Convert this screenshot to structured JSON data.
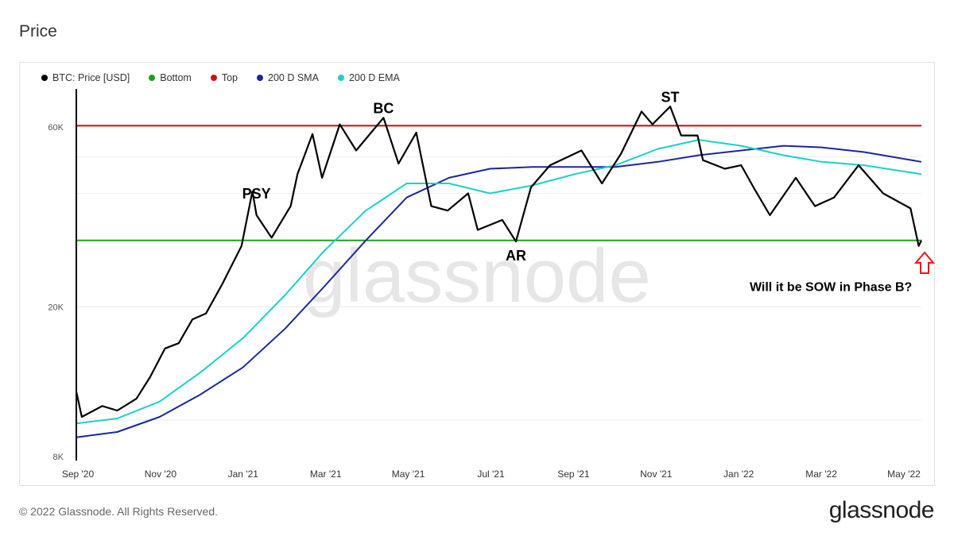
{
  "page": {
    "title": "Price",
    "copyright": "© 2022 Glassnode. All Rights Reserved.",
    "brand": "glassnode",
    "watermark": "glassnode"
  },
  "legend": [
    {
      "label": "BTC: Price [USD]",
      "color": "#000000"
    },
    {
      "label": "Bottom",
      "color": "#1aa31a"
    },
    {
      "label": "Top",
      "color": "#c41414"
    },
    {
      "label": "200 D SMA",
      "color": "#1a2799"
    },
    {
      "label": "200 D EMA",
      "color": "#1ad1c8"
    }
  ],
  "chart_data": {
    "type": "line",
    "y_scale": "log",
    "x_ticks": [
      "Sep '20",
      "Nov '20",
      "Jan '21",
      "Mar '21",
      "May '21",
      "Jul '21",
      "Sep '21",
      "Nov '21",
      "Jan '22",
      "Mar '22",
      "May '22"
    ],
    "y_ticks": [
      {
        "label": "8K",
        "value": 8000
      },
      {
        "label": "20K",
        "value": 20000
      },
      {
        "label": "60K",
        "value": 60000
      }
    ],
    "grid": true,
    "legend_position": "top-left",
    "annotations": [
      {
        "text": "PSY",
        "date": "2021-01-11",
        "price": 38000,
        "placement": "above"
      },
      {
        "text": "BC",
        "date": "2021-04-14",
        "price": 64000,
        "placement": "above"
      },
      {
        "text": "AR",
        "date": "2021-07-20",
        "price": 29500,
        "placement": "below"
      },
      {
        "text": "ST",
        "date": "2021-11-10",
        "price": 68500,
        "placement": "above"
      },
      {
        "text": "Will it be SOW in Phase B?",
        "date": "2022-05-12",
        "price": 22000,
        "placement": "left"
      }
    ],
    "horizontal_lines": [
      {
        "name": "Top",
        "value": 60500
      },
      {
        "name": "Bottom",
        "value": 30000
      }
    ],
    "series": [
      {
        "name": "BTC: Price [USD]",
        "points": [
          [
            "2020-09-01",
            11900
          ],
          [
            "2020-09-05",
            10200
          ],
          [
            "2020-09-20",
            10900
          ],
          [
            "2020-10-01",
            10600
          ],
          [
            "2020-10-15",
            11400
          ],
          [
            "2020-10-25",
            13000
          ],
          [
            "2020-11-05",
            15500
          ],
          [
            "2020-11-15",
            16000
          ],
          [
            "2020-11-25",
            18500
          ],
          [
            "2020-12-05",
            19200
          ],
          [
            "2020-12-17",
            23000
          ],
          [
            "2020-12-31",
            29000
          ],
          [
            "2021-01-08",
            40500
          ],
          [
            "2021-01-11",
            35000
          ],
          [
            "2021-01-22",
            30500
          ],
          [
            "2021-02-05",
            37000
          ],
          [
            "2021-02-10",
            45000
          ],
          [
            "2021-02-21",
            57500
          ],
          [
            "2021-02-28",
            44000
          ],
          [
            "2021-03-13",
            61000
          ],
          [
            "2021-03-25",
            52000
          ],
          [
            "2021-04-14",
            63500
          ],
          [
            "2021-04-25",
            48000
          ],
          [
            "2021-05-08",
            58000
          ],
          [
            "2021-05-19",
            37000
          ],
          [
            "2021-05-31",
            36000
          ],
          [
            "2021-06-15",
            40000
          ],
          [
            "2021-06-22",
            32000
          ],
          [
            "2021-07-10",
            34000
          ],
          [
            "2021-07-20",
            29800
          ],
          [
            "2021-07-31",
            41500
          ],
          [
            "2021-08-14",
            47500
          ],
          [
            "2021-09-06",
            52000
          ],
          [
            "2021-09-21",
            42500
          ],
          [
            "2021-10-05",
            51000
          ],
          [
            "2021-10-20",
            66000
          ],
          [
            "2021-10-28",
            61000
          ],
          [
            "2021-11-10",
            68000
          ],
          [
            "2021-11-18",
            57000
          ],
          [
            "2021-11-30",
            57000
          ],
          [
            "2021-12-04",
            49000
          ],
          [
            "2021-12-20",
            46500
          ],
          [
            "2022-01-01",
            47500
          ],
          [
            "2022-01-10",
            41500
          ],
          [
            "2022-01-22",
            35000
          ],
          [
            "2022-02-10",
            44000
          ],
          [
            "2022-02-24",
            37000
          ],
          [
            "2022-03-10",
            39000
          ],
          [
            "2022-03-28",
            47500
          ],
          [
            "2022-04-15",
            40000
          ],
          [
            "2022-05-05",
            36500
          ],
          [
            "2022-05-11",
            29000
          ],
          [
            "2022-05-13",
            30000
          ]
        ]
      },
      {
        "name": "200 D SMA",
        "points": [
          [
            "2020-09-01",
            9000
          ],
          [
            "2020-10-01",
            9300
          ],
          [
            "2020-11-01",
            10200
          ],
          [
            "2020-12-01",
            11700
          ],
          [
            "2021-01-01",
            13800
          ],
          [
            "2021-02-01",
            17500
          ],
          [
            "2021-03-01",
            22500
          ],
          [
            "2021-04-01",
            30000
          ],
          [
            "2021-05-01",
            39000
          ],
          [
            "2021-06-01",
            44000
          ],
          [
            "2021-07-01",
            46500
          ],
          [
            "2021-08-01",
            47000
          ],
          [
            "2021-09-01",
            47000
          ],
          [
            "2021-10-01",
            47000
          ],
          [
            "2021-11-01",
            48500
          ],
          [
            "2021-12-01",
            50500
          ],
          [
            "2022-01-01",
            52000
          ],
          [
            "2022-02-01",
            53500
          ],
          [
            "2022-03-01",
            53000
          ],
          [
            "2022-04-01",
            51500
          ],
          [
            "2022-05-13",
            48500
          ]
        ]
      },
      {
        "name": "200 D EMA",
        "points": [
          [
            "2020-09-01",
            9800
          ],
          [
            "2020-10-01",
            10100
          ],
          [
            "2020-11-01",
            11200
          ],
          [
            "2020-12-01",
            13400
          ],
          [
            "2021-01-01",
            16500
          ],
          [
            "2021-02-01",
            21500
          ],
          [
            "2021-03-01",
            28000
          ],
          [
            "2021-04-01",
            36000
          ],
          [
            "2021-05-01",
            42500
          ],
          [
            "2021-06-01",
            42500
          ],
          [
            "2021-07-01",
            40000
          ],
          [
            "2021-08-01",
            42000
          ],
          [
            "2021-09-01",
            45000
          ],
          [
            "2021-10-01",
            47500
          ],
          [
            "2021-11-01",
            52500
          ],
          [
            "2021-12-01",
            55500
          ],
          [
            "2022-01-01",
            53500
          ],
          [
            "2022-02-01",
            50500
          ],
          [
            "2022-03-01",
            48500
          ],
          [
            "2022-04-01",
            47500
          ],
          [
            "2022-05-13",
            45000
          ]
        ]
      }
    ]
  }
}
